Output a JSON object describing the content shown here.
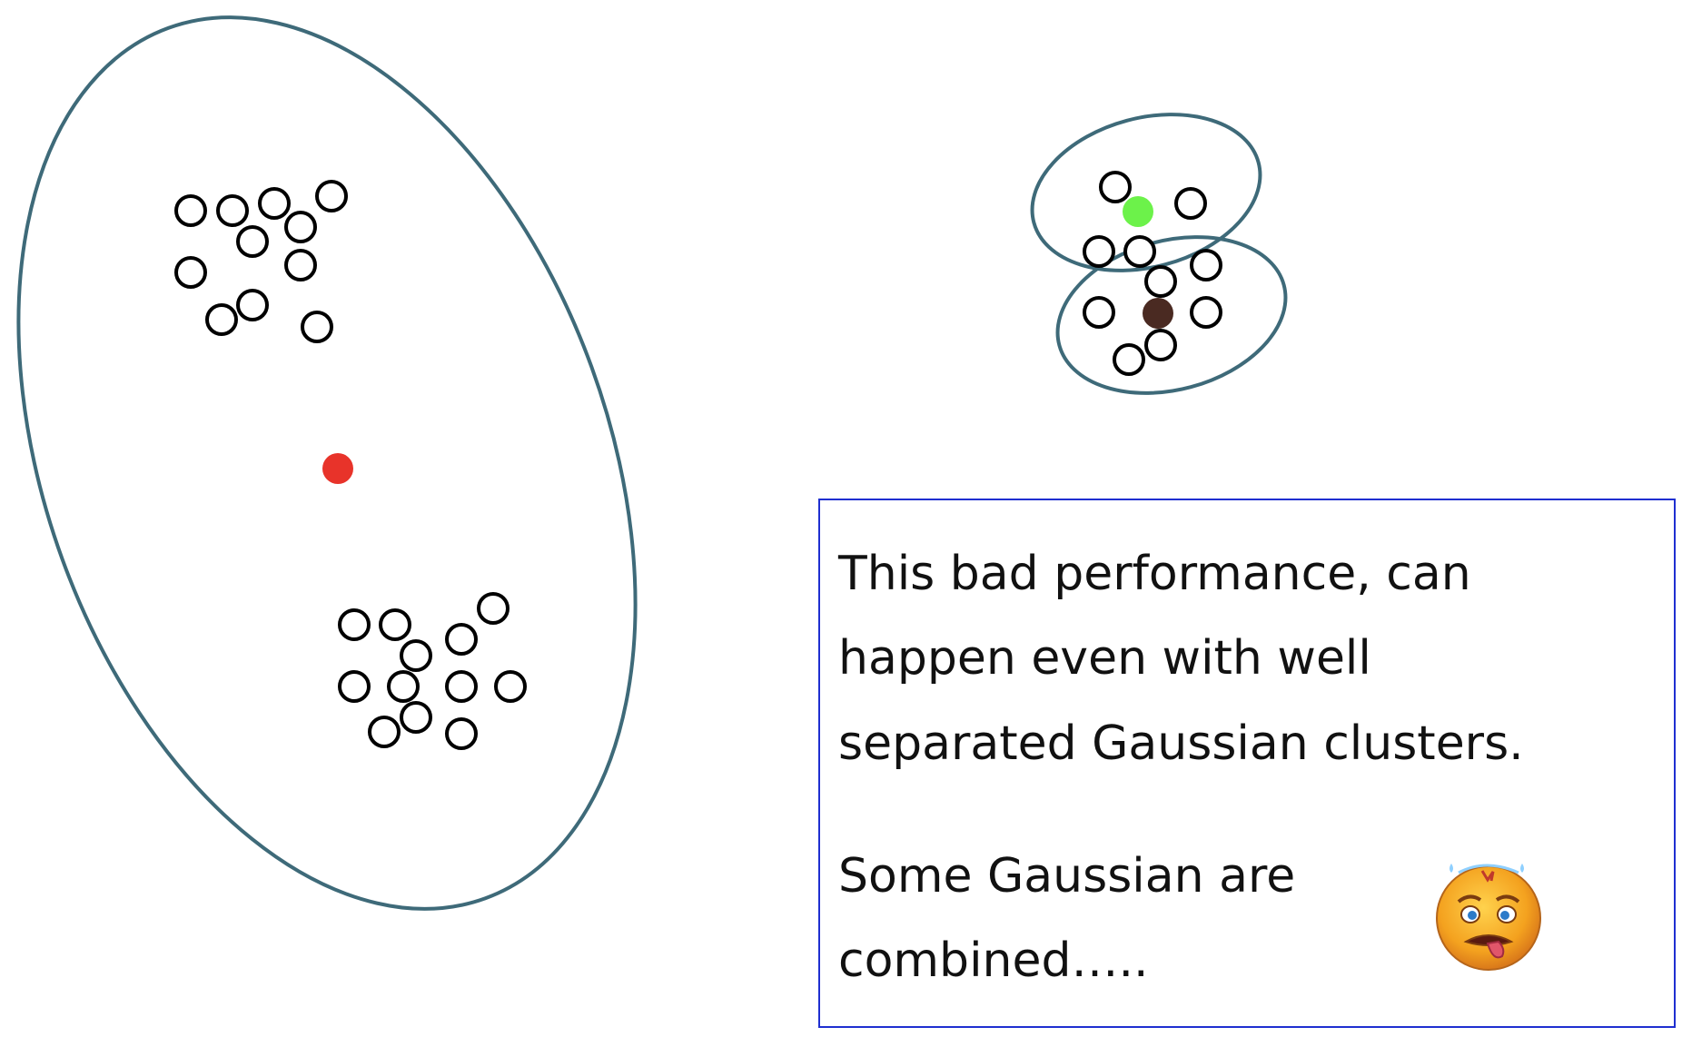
{
  "colors": {
    "ellipse_stroke": "#3e6a79",
    "point_stroke": "#000000",
    "center_large": "#e8332a",
    "center_top": "#6cf24a",
    "center_bottom": "#4a2a22",
    "box_border": "#1f2fd0"
  },
  "text_box": {
    "lines": [
      "This bad performance, can",
      "happen even with well",
      "separated Gaussian clusters.",
      "Some Gaussian are",
      "combined….."
    ]
  },
  "icons": {
    "emoji": "worried-face-icon"
  }
}
